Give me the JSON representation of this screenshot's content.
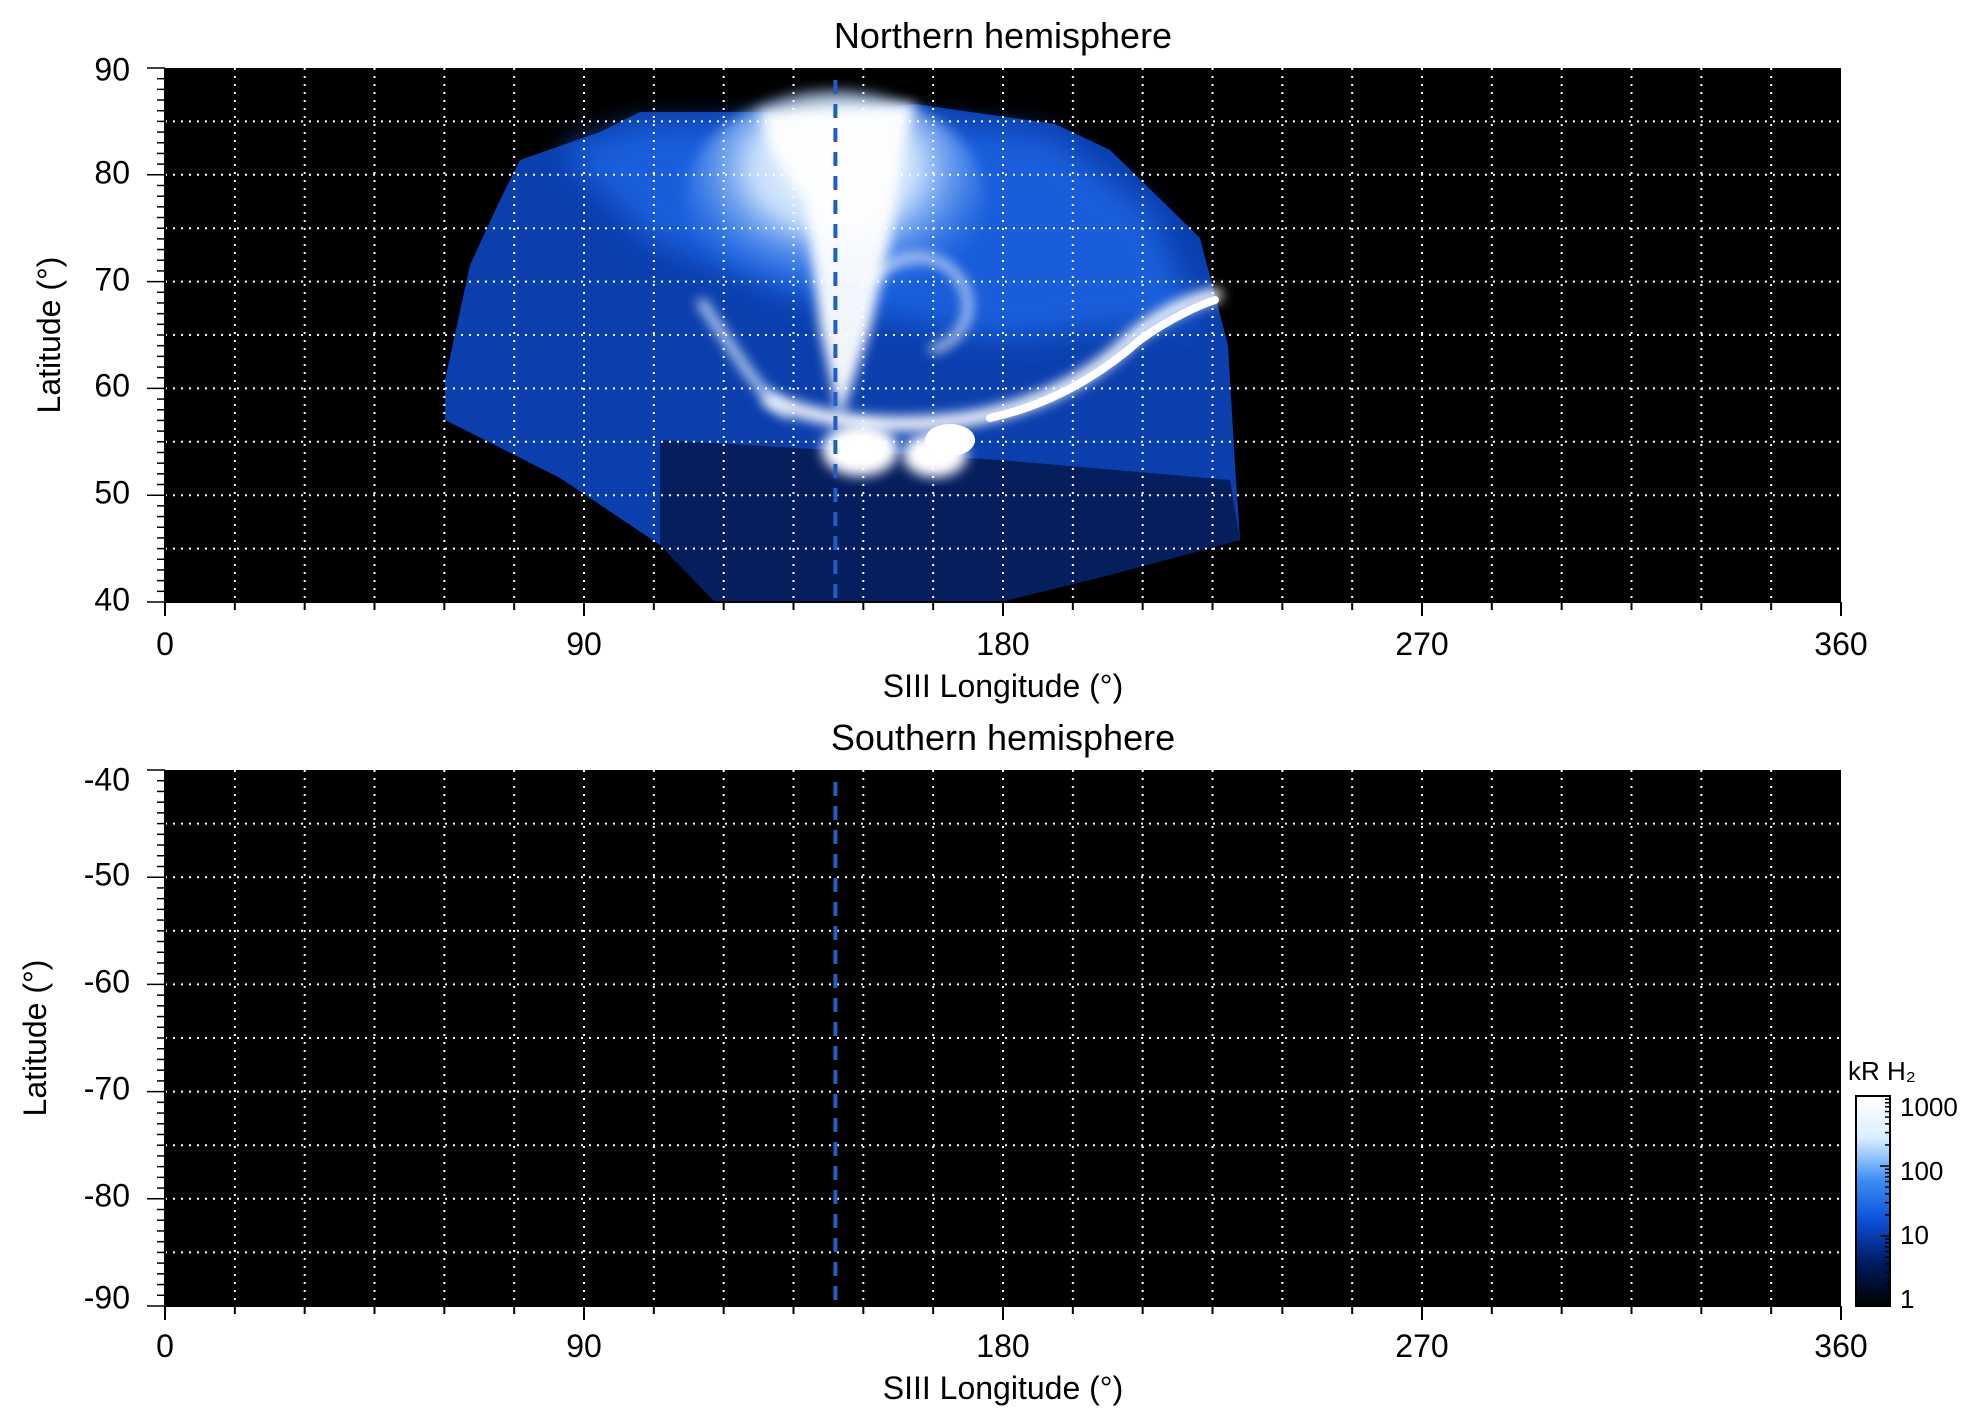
{
  "chart_data": [
    {
      "type": "heatmap",
      "title": "Northern hemisphere",
      "xlabel": "SIII Longitude (°)",
      "ylabel": "Latitude (°)",
      "xlim": [
        0,
        360
      ],
      "ylim": [
        40,
        90
      ],
      "xticks": [
        0,
        90,
        180,
        270,
        360
      ],
      "yticks": [
        40,
        50,
        60,
        70,
        80,
        90
      ],
      "x_tick_labels": [
        "0",
        "90",
        "180",
        "270",
        "360"
      ],
      "y_tick_labels": [
        "40",
        "50",
        "60",
        "70",
        "80",
        "90"
      ],
      "grid": true,
      "grid_dx": 15,
      "grid_dy": 5,
      "background": "#000000",
      "dashed_line_longitude": 144,
      "dashed_line_color": "#1f5fc4",
      "coverage": {
        "lon_min": 60,
        "lon_max": 230,
        "edge_top_lat": 86,
        "edge_bottom_lat": 40
      },
      "features": [
        {
          "kind": "main-oval",
          "lon": [
            130,
            200,
            225
          ],
          "lat": [
            58,
            60,
            66
          ],
          "level_kR": 1000
        },
        {
          "kind": "polar-bright",
          "lon_center": 152,
          "lat_center": 80,
          "level_kR": 1000
        },
        {
          "kind": "footprint-spots",
          "lon": [
            148,
            165,
            175
          ],
          "lat": [
            53,
            52,
            54
          ],
          "level_kR": 1000
        }
      ]
    },
    {
      "type": "heatmap",
      "title": "Southern hemisphere",
      "xlabel": "SIII Longitude (°)",
      "ylabel": "Latitude (°)",
      "xlim": [
        0,
        360
      ],
      "ylim": [
        -90,
        -40
      ],
      "xticks": [
        0,
        90,
        180,
        270,
        360
      ],
      "yticks": [
        -40,
        -50,
        -60,
        -70,
        -80,
        -90
      ],
      "x_tick_labels": [
        "0",
        "90",
        "180",
        "270",
        "360"
      ],
      "y_tick_labels": [
        "-40",
        "-50",
        "-60",
        "-70",
        "-80",
        "-90"
      ],
      "grid": true,
      "grid_dx": 15,
      "grid_dy": 5,
      "background": "#000000",
      "dashed_line_longitude": 144,
      "dashed_line_color": "#1f5fc4",
      "coverage": null
    }
  ],
  "colorbar": {
    "label": "kR H₂",
    "scale": "log",
    "range": [
      1,
      1000
    ],
    "ticks": [
      1,
      10,
      100,
      1000
    ],
    "tick_labels": [
      "1",
      "10",
      "100",
      "1000"
    ],
    "colors": [
      "#000000",
      "#001a5e",
      "#0a4fd6",
      "#3b8ef4",
      "#dbeeff",
      "#ffffff"
    ]
  }
}
